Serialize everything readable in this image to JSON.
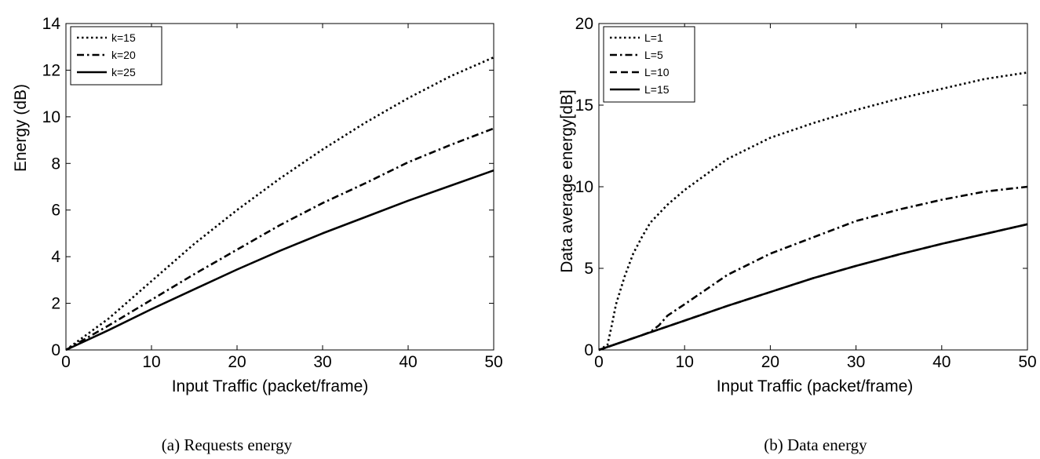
{
  "chart_data": [
    {
      "type": "line",
      "xlabel": "Input Traffic  (packet/frame)",
      "ylabel": "Energy (dB)",
      "xlim": [
        0,
        50
      ],
      "ylim": [
        0,
        14
      ],
      "xticks": [
        "0",
        "10",
        "20",
        "30",
        "40",
        "50"
      ],
      "yticks": [
        "0",
        "2",
        "4",
        "6",
        "8",
        "10",
        "12",
        "14"
      ],
      "grid": false,
      "legend_position": "top-left",
      "caption": "(a) Requests energy",
      "x": [
        0,
        5,
        10,
        15,
        20,
        25,
        30,
        35,
        40,
        45,
        50
      ],
      "series": [
        {
          "name": "k=15",
          "style": "dotted",
          "values": [
            0,
            1.35,
            2.95,
            4.55,
            6.0,
            7.35,
            8.6,
            9.75,
            10.8,
            11.75,
            12.55
          ]
        },
        {
          "name": "k=20",
          "style": "dashdot",
          "values": [
            0,
            1.05,
            2.15,
            3.25,
            4.3,
            5.35,
            6.3,
            7.15,
            8.05,
            8.8,
            9.5
          ]
        },
        {
          "name": "k=25",
          "style": "solid",
          "values": [
            0,
            0.85,
            1.75,
            2.6,
            3.45,
            4.25,
            5.0,
            5.7,
            6.4,
            7.05,
            7.7
          ]
        }
      ]
    },
    {
      "type": "line",
      "xlabel": "Input Traffic  (packet/frame)",
      "ylabel": "Data average  energy[dB]",
      "xlim": [
        0,
        50
      ],
      "ylim": [
        0,
        20
      ],
      "xticks": [
        "0",
        "10",
        "20",
        "30",
        "40",
        "50"
      ],
      "yticks": [
        "0",
        "5",
        "10",
        "15",
        "20"
      ],
      "grid": false,
      "legend_position": "top-left",
      "caption": "(b) Data energy",
      "series": [
        {
          "name": "L=1",
          "style": "dotted",
          "x": [
            0,
            1,
            1.5,
            2,
            3,
            4,
            5,
            6,
            8,
            10,
            15,
            20,
            25,
            30,
            35,
            40,
            45,
            50
          ],
          "values": [
            0,
            0.3,
            1.5,
            2.8,
            4.5,
            5.9,
            6.9,
            7.8,
            8.9,
            9.8,
            11.7,
            13.0,
            13.9,
            14.7,
            15.4,
            16.0,
            16.6,
            17.0
          ]
        },
        {
          "name": "L=5",
          "style": "dashdot",
          "x": [
            0,
            5,
            6,
            7,
            8,
            10,
            15,
            20,
            25,
            30,
            35,
            40,
            45,
            50
          ],
          "values": [
            0,
            0.9,
            1.1,
            1.5,
            2.1,
            2.8,
            4.6,
            5.9,
            6.9,
            7.9,
            8.6,
            9.2,
            9.7,
            10.0
          ]
        },
        {
          "name": "L=10",
          "style": "dashed",
          "x": [
            0,
            5,
            10,
            15,
            20,
            25,
            30,
            35,
            40,
            45,
            50
          ],
          "values": [
            0,
            0.9,
            1.8,
            2.7,
            3.55,
            4.4,
            5.15,
            5.85,
            6.5,
            7.1,
            7.7
          ]
        },
        {
          "name": "L=15",
          "style": "solid",
          "x": [
            0,
            5,
            10,
            15,
            20,
            25,
            30,
            35,
            40,
            45,
            50
          ],
          "values": [
            0,
            0.9,
            1.8,
            2.7,
            3.55,
            4.4,
            5.15,
            5.85,
            6.5,
            7.1,
            7.7
          ]
        }
      ]
    }
  ]
}
